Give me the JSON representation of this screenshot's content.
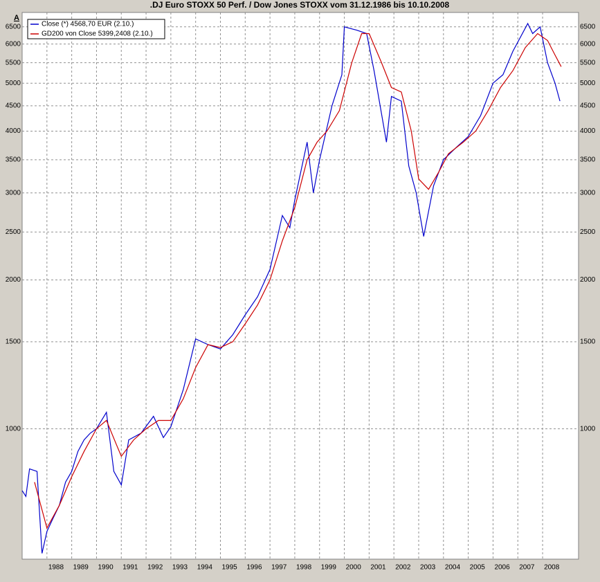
{
  "chart_data": {
    "type": "line",
    "title": ".DJ Euro STOXX 50 Perf. / Dow Jones STOXX vom 31.12.1986 bis 10.10.2008",
    "corner_label": "A",
    "log_scale": true,
    "grid": true,
    "legend": "top-left",
    "xlim": [
      1987,
      2009.45
    ],
    "xticks": [
      1988,
      1989,
      1990,
      1991,
      1992,
      1993,
      1994,
      1995,
      1996,
      1997,
      1998,
      1999,
      2000,
      2001,
      2002,
      2003,
      2004,
      2005,
      2006,
      2007,
      2008
    ],
    "ylim": [
      545,
      6950
    ],
    "yticks": [
      1000,
      1500,
      2000,
      2500,
      3000,
      3500,
      4000,
      4500,
      5000,
      5500,
      6000,
      6500
    ],
    "series": [
      {
        "name": "Close (*) 4568,70 EUR (2.10.)",
        "color": "#0000cc",
        "x": [
          1987.0,
          1987.15,
          1987.3,
          1987.6,
          1987.8,
          1988.0,
          1988.25,
          1988.5,
          1988.75,
          1989.0,
          1989.25,
          1989.5,
          1989.75,
          1990.0,
          1990.4,
          1990.7,
          1991.0,
          1991.3,
          1991.8,
          1992.3,
          1992.7,
          1993.0,
          1993.5,
          1994.0,
          1994.5,
          1995.0,
          1995.5,
          1996.0,
          1996.5,
          1997.0,
          1997.5,
          1997.8,
          1998.0,
          1998.5,
          1998.75,
          1999.0,
          1999.5,
          1999.9,
          2000.0,
          2000.5,
          2000.9,
          2001.2,
          2001.7,
          2001.9,
          2002.3,
          2002.6,
          2002.9,
          2003.2,
          2003.6,
          2004.0,
          2004.5,
          2005.0,
          2005.5,
          2006.0,
          2006.4,
          2006.8,
          2007.4,
          2007.6,
          2007.9,
          2008.2,
          2008.5,
          2008.7
        ],
        "values": [
          750,
          730,
          830,
          820,
          560,
          620,
          660,
          700,
          780,
          820,
          900,
          950,
          980,
          1000,
          1080,
          820,
          770,
          950,
          980,
          1060,
          960,
          1010,
          1200,
          1520,
          1480,
          1450,
          1550,
          1700,
          1850,
          2100,
          2700,
          2550,
          2900,
          3800,
          3000,
          3500,
          4500,
          5200,
          6500,
          6400,
          6300,
          5300,
          3800,
          4700,
          4600,
          3400,
          3000,
          2450,
          3100,
          3500,
          3700,
          3900,
          4300,
          5000,
          5200,
          5800,
          6600,
          6300,
          6500,
          5500,
          5000,
          4600
        ]
      },
      {
        "name": "GD200 von Close 5399,2408 (2.10.)",
        "color": "#cc0000",
        "x": [
          1987.5,
          1988.0,
          1988.5,
          1989.0,
          1989.5,
          1990.0,
          1990.4,
          1990.8,
          1991.0,
          1991.5,
          1992.0,
          1992.5,
          1993.0,
          1993.5,
          1994.0,
          1994.5,
          1995.0,
          1995.5,
          1996.0,
          1996.5,
          1997.0,
          1997.5,
          1998.0,
          1998.5,
          1998.9,
          1999.3,
          1999.8,
          2000.3,
          2000.7,
          2001.0,
          2001.5,
          2001.9,
          2002.3,
          2002.7,
          2003.0,
          2003.4,
          2003.8,
          2004.2,
          2004.8,
          2005.3,
          2005.8,
          2006.3,
          2006.8,
          2007.3,
          2007.8,
          2008.2,
          2008.5,
          2008.75
        ],
        "values": [
          780,
          630,
          700,
          800,
          900,
          1000,
          1040,
          930,
          880,
          950,
          1000,
          1040,
          1040,
          1150,
          1330,
          1480,
          1460,
          1500,
          1630,
          1780,
          2000,
          2400,
          2800,
          3500,
          3800,
          4000,
          4400,
          5500,
          6300,
          6300,
          5500,
          4900,
          4800,
          4000,
          3200,
          3050,
          3300,
          3600,
          3800,
          4000,
          4400,
          4900,
          5300,
          5900,
          6300,
          6100,
          5700,
          5400
        ]
      }
    ]
  }
}
